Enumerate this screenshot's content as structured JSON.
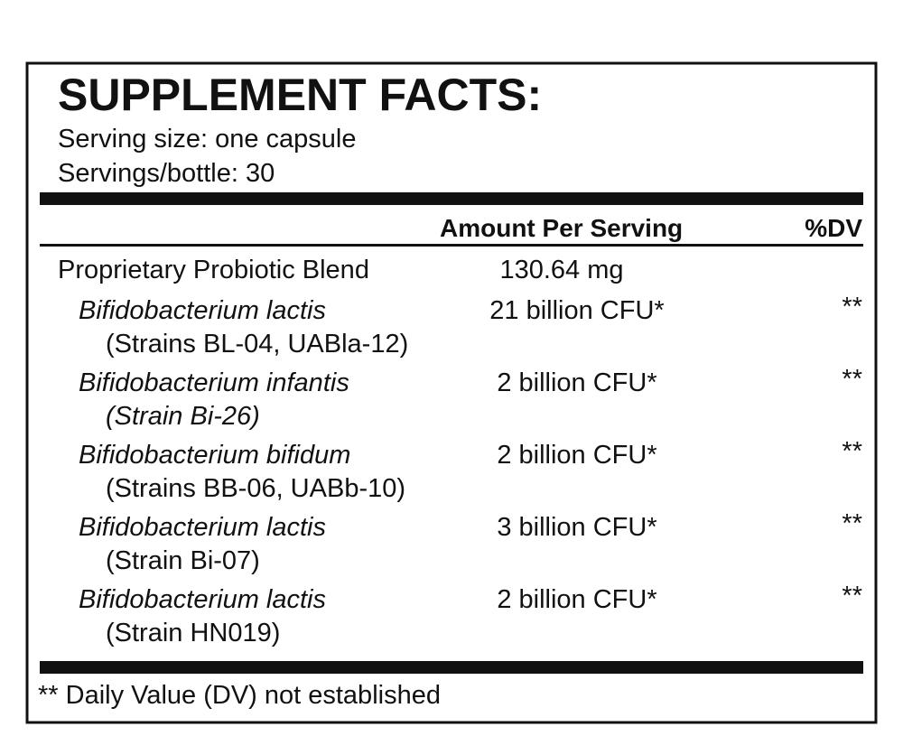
{
  "title": "SUPPLEMENT FACTS:",
  "serving_size": "Serving size: one capsule",
  "servings_per_bottle": "Servings/bottle: 30",
  "table": {
    "headers": [
      "Amount Per Serving",
      "%DV"
    ],
    "blend": {
      "name": "Proprietary Probiotic Blend",
      "amount": "130.64 mg"
    },
    "rows": [
      {
        "name": "Bifidobacterium lactis",
        "strain": "(Strains BL-04, UABla-12)",
        "amount": "21 billion CFU*",
        "dv": "**"
      },
      {
        "name": "Bifidobacterium infantis",
        "strain": "(Strain Bi-26)",
        "amount": "2 billion CFU*",
        "dv": "**"
      },
      {
        "name": "Bifidobacterium bifidum",
        "strain": "(Strains BB-06, UABb-10)",
        "amount": "2 billion CFU*",
        "dv": "**"
      },
      {
        "name": "Bifidobacterium lactis",
        "strain": "(Strain Bi-07)",
        "amount": "3 billion CFU*",
        "dv": "**"
      },
      {
        "name": "Bifidobacterium lactis",
        "strain": "(Strain HN019)",
        "amount": "2 billion CFU*",
        "dv": "**"
      }
    ]
  },
  "footnote": "** Daily Value (DV) not established"
}
